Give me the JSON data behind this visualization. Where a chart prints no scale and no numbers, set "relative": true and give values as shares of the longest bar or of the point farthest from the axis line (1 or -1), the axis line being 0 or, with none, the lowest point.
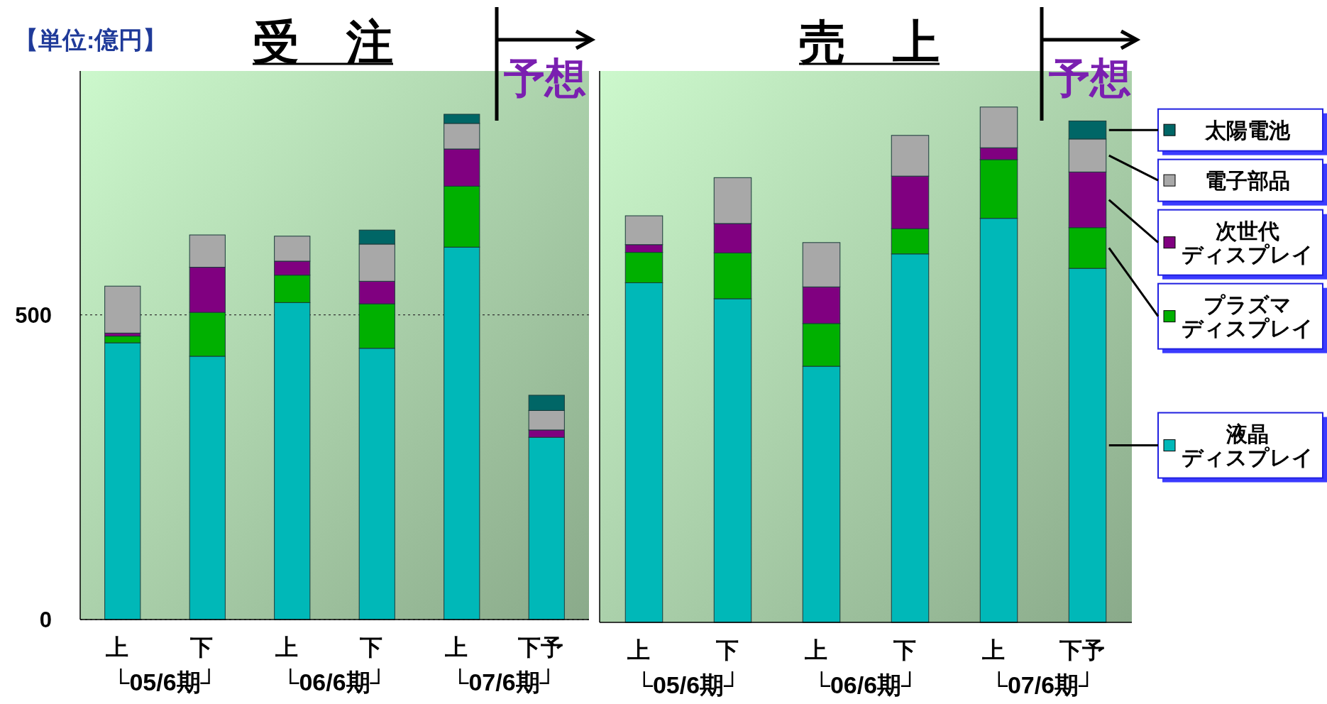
{
  "chart_data": [
    {
      "type": "bar",
      "stacked": true,
      "title": "受　注",
      "categories": [
        "上",
        "下",
        "上",
        "下",
        "上",
        "下予"
      ],
      "ylim": [
        0,
        900
      ],
      "yticks": [
        0,
        500
      ],
      "grid": "y",
      "legend": false,
      "annotations": [
        "【単位:億円】",
        "予想",
        "└05/6期┘",
        "└06/6期┘",
        "└07/6期┘"
      ],
      "series": [
        {
          "color": "#00b8b8",
          "values": [
            454,
            432,
            520,
            445,
            611,
            299
          ]
        },
        {
          "color": "#00b000",
          "values": [
            11,
            72,
            45,
            73,
            100,
            0
          ]
        },
        {
          "color": "#800080",
          "values": [
            5,
            74,
            23,
            37,
            61,
            12
          ]
        },
        {
          "color": "#a8a8a8",
          "values": [
            77,
            53,
            41,
            61,
            42,
            32
          ]
        },
        {
          "color": "#006666",
          "values": [
            null,
            null,
            null,
            23,
            15,
            25
          ]
        }
      ]
    },
    {
      "type": "bar",
      "stacked": true,
      "relative": true,
      "title": "売　上",
      "categories": [
        "上",
        "下",
        "上",
        "下",
        "上",
        "下予"
      ],
      "legend": "right",
      "annotations": [
        "予想",
        "└05/6期┘",
        "└06/6期┘",
        "└07/6期┘"
      ],
      "series": [
        {
          "name": "液晶ディスプレイ",
          "color": "#00b8b8",
          "values": [
            0.659,
            0.628,
            0.497,
            0.715,
            0.784,
            0.687
          ]
        },
        {
          "name": "プラズマディスプレイ",
          "color": "#00b000",
          "values": [
            0.059,
            0.089,
            0.083,
            0.049,
            0.114,
            0.079
          ]
        },
        {
          "name": "次世代ディスプレイ",
          "color": "#800080",
          "values": [
            0.015,
            0.057,
            0.071,
            0.102,
            0.023,
            0.108
          ]
        },
        {
          "name": "電子部品",
          "color": "#a8a8a8",
          "values": [
            0.056,
            0.089,
            0.086,
            0.079,
            0.079,
            0.064
          ]
        },
        {
          "name": "太陽電池",
          "color": "#006666",
          "values": [
            null,
            null,
            null,
            null,
            null,
            0.035
          ]
        }
      ]
    }
  ]
}
